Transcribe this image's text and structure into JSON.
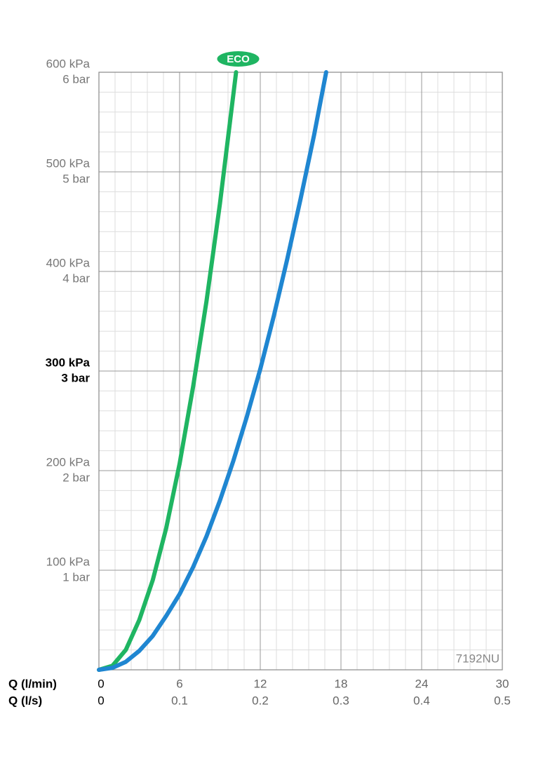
{
  "chart_data": {
    "type": "line",
    "xlabel": "Q (l/min)",
    "x2label": "Q (l/s)",
    "xlim": [
      0,
      30
    ],
    "xticks": [
      0,
      6,
      12,
      18,
      24,
      30
    ],
    "x2lim": [
      0,
      0.5
    ],
    "x2ticks": [
      0,
      0.1,
      0.2,
      0.3,
      0.4,
      0.5
    ],
    "ylim": [
      0,
      600
    ],
    "yticks": [
      {
        "value": 100,
        "label": "100 kPa"
      },
      {
        "value": 200,
        "label": "200 kPa"
      },
      {
        "value": 300,
        "label": "300 kPa"
      },
      {
        "value": 400,
        "label": "400 kPa"
      },
      {
        "value": 500,
        "label": "500 kPa"
      },
      {
        "value": 600,
        "label": "600 kPa"
      }
    ],
    "y2lim": [
      0,
      6
    ],
    "y2ticks": [
      {
        "value": 1,
        "label": "1 bar"
      },
      {
        "value": 2,
        "label": "2 bar"
      },
      {
        "value": 3,
        "label": "3 bar"
      },
      {
        "value": 4,
        "label": "4 bar"
      },
      {
        "value": 5,
        "label": "5 bar"
      },
      {
        "value": 6,
        "label": "6 bar"
      }
    ],
    "bold_ytick": 300,
    "grid": true,
    "minor_xstep": 1.2,
    "minor_ystep": 20,
    "annotation": "7192NU",
    "series": [
      {
        "name": "ECO",
        "color": "#1fb562",
        "x": [
          0,
          1,
          2,
          3,
          4,
          5,
          6,
          7,
          8,
          9,
          10.2
        ],
        "values": [
          0,
          4,
          20,
          50,
          90,
          142,
          207,
          284,
          370,
          468,
          600
        ]
      },
      {
        "color": "#1f86d1",
        "x": [
          0,
          1,
          2,
          3,
          4,
          5,
          6,
          7,
          8,
          9,
          10,
          11,
          12,
          13,
          14,
          15,
          16,
          16.9
        ],
        "values": [
          0,
          2,
          8,
          19,
          34,
          54,
          76,
          103,
          134,
          170,
          210,
          254,
          302,
          355,
          412,
          473,
          537,
          600
        ]
      }
    ]
  }
}
